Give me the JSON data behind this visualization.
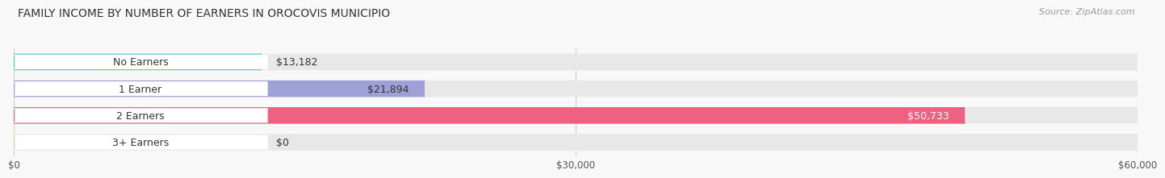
{
  "title": "FAMILY INCOME BY NUMBER OF EARNERS IN OROCOVIS MUNICIPIO",
  "source": "Source: ZipAtlas.com",
  "categories": [
    "No Earners",
    "1 Earner",
    "2 Earners",
    "3+ Earners"
  ],
  "values": [
    13182,
    21894,
    50733,
    0
  ],
  "bar_colors": [
    "#5ecece",
    "#a0a0d8",
    "#f06080",
    "#f0c898"
  ],
  "bar_bg_color": "#e8e8e8",
  "label_bg_color": "#ffffff",
  "value_label_colors": [
    "#333333",
    "#333333",
    "#ffffff",
    "#333333"
  ],
  "value_labels": [
    "$13,182",
    "$21,894",
    "$50,733",
    "$0"
  ],
  "xlim": [
    0,
    60000
  ],
  "xticks": [
    0,
    30000,
    60000
  ],
  "xticklabels": [
    "$0",
    "$30,000",
    "$60,000"
  ],
  "background_color": "#f8f8f8",
  "bar_height": 0.62,
  "title_fontsize": 10,
  "source_fontsize": 8,
  "label_fontsize": 9,
  "value_fontsize": 9
}
